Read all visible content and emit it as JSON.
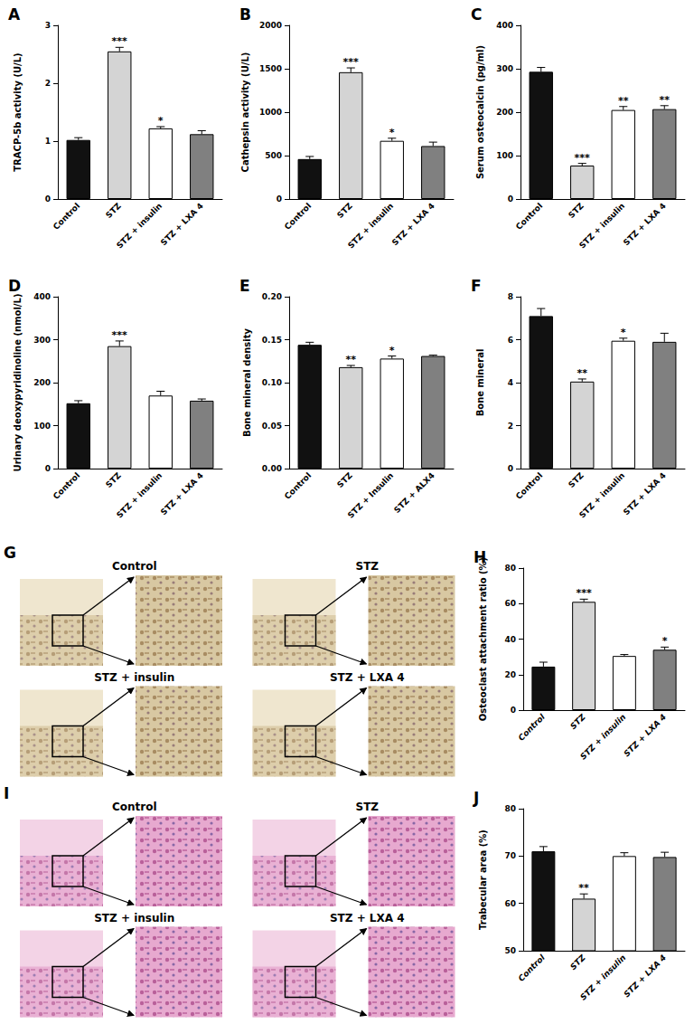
{
  "chart_data": [
    {
      "type": "bar",
      "title": "A",
      "y_label": "TRACP-5b activity (U/L)",
      "categories": [
        "Control",
        "STZ",
        "STZ + insulin",
        "STZ + LXA 4"
      ],
      "values": [
        1.02,
        2.55,
        1.22,
        1.12
      ],
      "errors": [
        0.04,
        0.07,
        0.03,
        0.06
      ],
      "annotations": [
        null,
        "***",
        "*",
        null
      ],
      "colors": [
        "#111111",
        "#d4d4d4",
        "#ffffff",
        "#808080"
      ],
      "ylim": [
        0,
        3
      ],
      "yticks": [
        0,
        1,
        2,
        3
      ],
      "grid": false
    },
    {
      "type": "bar",
      "title": "B",
      "y_label": "Cathepsin activity (U/L)",
      "categories": [
        "Control",
        "STZ",
        "STZ + insulin",
        "STZ + LXA 4"
      ],
      "values": [
        460,
        1460,
        670,
        610
      ],
      "errors": [
        30,
        50,
        30,
        45
      ],
      "annotations": [
        null,
        "***",
        "*",
        null
      ],
      "colors": [
        "#111111",
        "#d4d4d4",
        "#ffffff",
        "#808080"
      ],
      "ylim": [
        0,
        2000
      ],
      "yticks": [
        0,
        500,
        1000,
        1500,
        2000
      ],
      "grid": false
    },
    {
      "type": "bar",
      "title": "C",
      "y_label": "Serum osteocalcin (pg/ml)",
      "categories": [
        "Control",
        "STZ",
        "STZ + insulin",
        "STZ + LXA 4"
      ],
      "values": [
        293,
        77,
        205,
        207
      ],
      "errors": [
        10,
        5,
        8,
        8
      ],
      "annotations": [
        null,
        "***",
        "**",
        "**"
      ],
      "colors": [
        "#111111",
        "#d4d4d4",
        "#ffffff",
        "#808080"
      ],
      "ylim": [
        0,
        400
      ],
      "yticks": [
        0,
        100,
        200,
        300,
        400
      ],
      "grid": false
    },
    {
      "type": "bar",
      "title": "D",
      "y_label": "Urinary deoxypyridinoline (nmol/L)",
      "categories": [
        "Control",
        "STZ",
        "STZ + insulin",
        "STZ + LXA 4"
      ],
      "values": [
        152,
        285,
        170,
        158
      ],
      "errors": [
        6,
        12,
        10,
        4
      ],
      "annotations": [
        null,
        "***",
        null,
        null
      ],
      "colors": [
        "#111111",
        "#d4d4d4",
        "#ffffff",
        "#808080"
      ],
      "ylim": [
        0,
        400
      ],
      "yticks": [
        0,
        100,
        200,
        300,
        400
      ],
      "grid": false
    },
    {
      "type": "bar",
      "title": "E",
      "y_label": "Bone mineral density",
      "categories": [
        "Control",
        "STZ",
        "STZ + Insulin",
        "STZ + ALX4"
      ],
      "values": [
        0.144,
        0.118,
        0.128,
        0.131
      ],
      "errors": [
        0.003,
        0.002,
        0.003,
        0.001
      ],
      "annotations": [
        null,
        "**",
        "*",
        null
      ],
      "colors": [
        "#111111",
        "#d4d4d4",
        "#ffffff",
        "#808080"
      ],
      "ylim": [
        0,
        0.2
      ],
      "yticks": [
        {
          "value": 0,
          "label": "0.00"
        },
        {
          "value": 0.05,
          "label": "0.05"
        },
        {
          "value": 0.1,
          "label": "0.10"
        },
        {
          "value": 0.15,
          "label": "0.15"
        },
        {
          "value": 0.2,
          "label": "0.20"
        }
      ],
      "grid": false
    },
    {
      "type": "bar",
      "title": "F",
      "y_label": "Bone mineral",
      "categories": [
        "Control",
        "STZ",
        "STZ + insulin",
        "STZ + LXA 4"
      ],
      "values": [
        7.1,
        4.05,
        5.95,
        5.9
      ],
      "errors": [
        0.35,
        0.12,
        0.12,
        0.4
      ],
      "annotations": [
        null,
        "**",
        "*",
        null
      ],
      "colors": [
        "#111111",
        "#d4d4d4",
        "#ffffff",
        "#808080"
      ],
      "ylim": [
        0,
        8
      ],
      "yticks": [
        0,
        2,
        4,
        6,
        8
      ],
      "grid": false
    },
    {
      "type": "bar",
      "title": "H",
      "y_label": "Osteoclast attachment ratio (%)",
      "categories": [
        "Control",
        "STZ",
        "STZ + insulin",
        "STZ + LXA 4"
      ],
      "values": [
        24.5,
        61,
        30.5,
        34
      ],
      "errors": [
        2.5,
        1.5,
        0.8,
        1.5
      ],
      "annotations": [
        null,
        "***",
        null,
        "*"
      ],
      "colors": [
        "#111111",
        "#d4d4d4",
        "#ffffff",
        "#808080"
      ],
      "ylim": [
        0,
        80
      ],
      "yticks": [
        0,
        20,
        40,
        60,
        80
      ],
      "grid": false
    },
    {
      "type": "bar",
      "title": "J",
      "y_label": "Trabecular area (%)",
      "categories": [
        "Control",
        "STZ",
        "STZ + insulin",
        "STZ + LXA 4"
      ],
      "values": [
        71,
        61,
        70,
        69.8
      ],
      "errors": [
        1,
        1,
        0.7,
        1
      ],
      "annotations": [
        null,
        "**",
        null,
        null
      ],
      "colors": [
        "#111111",
        "#d4d4d4",
        "#ffffff",
        "#808080"
      ],
      "ylim": [
        50,
        80
      ],
      "yticks": [
        50,
        60,
        70,
        80
      ],
      "grid": false
    }
  ],
  "micrographs": [
    {
      "title": "G",
      "labels": [
        "Control",
        "STZ",
        "STZ + insulin",
        "STZ + LXA 4"
      ]
    },
    {
      "title": "I",
      "labels": [
        "Control",
        "STZ",
        "STZ + insulin",
        "STZ + LXA 4"
      ]
    }
  ]
}
